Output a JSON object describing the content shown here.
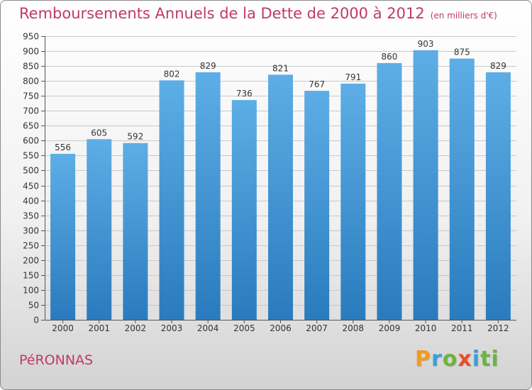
{
  "title": "Remboursements Annuels de la Dette de 2000 à 2012",
  "unit": "(en milliers d'€)",
  "commune": "PéRONNAS",
  "logo": {
    "letters": [
      "P",
      "r",
      "o",
      "x",
      "i",
      "ti"
    ]
  },
  "colors": {
    "title": "#c0396b",
    "bar_top": "#5daee6",
    "bar_bottom": "#2a7bbd"
  },
  "chart_data": {
    "type": "bar",
    "title": "Remboursements Annuels de la Dette de 2000 à 2012",
    "xlabel": "",
    "ylabel": "",
    "ylim": [
      0,
      950
    ],
    "yticks": [
      0,
      50,
      100,
      150,
      200,
      250,
      300,
      350,
      400,
      450,
      500,
      550,
      600,
      650,
      700,
      750,
      800,
      850,
      900,
      950
    ],
    "grid": true,
    "categories": [
      "2000",
      "2001",
      "2002",
      "2003",
      "2004",
      "2005",
      "2006",
      "2007",
      "2008",
      "2009",
      "2010",
      "2011",
      "2012"
    ],
    "values": [
      556,
      605,
      592,
      802,
      829,
      736,
      821,
      767,
      791,
      860,
      903,
      875,
      829
    ]
  }
}
